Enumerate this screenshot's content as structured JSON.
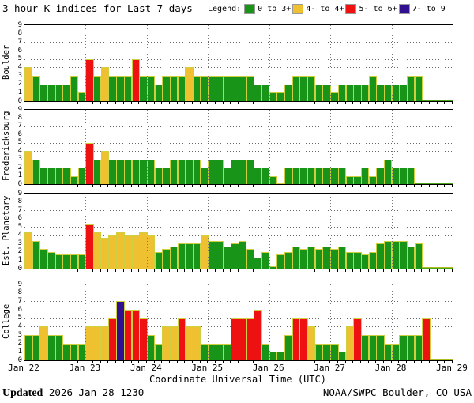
{
  "title": "3-hour K-indices for Last 7 days",
  "legend": {
    "label": "Legend:",
    "items": [
      {
        "label": "0 to 3+",
        "band": "green",
        "color": "#189418"
      },
      {
        "label": "4- to 4+",
        "band": "yellow",
        "color": "#efc02f"
      },
      {
        "label": "5- to 6+",
        "band": "red",
        "color": "#ee1111"
      },
      {
        "label": "7- to 9",
        "band": "purple",
        "color": "#31108f"
      }
    ]
  },
  "xlabel": "Coordinate Universal Time (UTC)",
  "x_axis_days": [
    "Jan 22",
    "Jan 23",
    "Jan 24",
    "Jan 25",
    "Jan 26",
    "Jan 27",
    "Jan 28",
    "Jan 29"
  ],
  "footer": {
    "updated_label": "Updated",
    "updated_value": " 2026 Jan 28 1230",
    "credit": "NOAA/SWPC Boulder, CO USA"
  },
  "colors": {
    "green": "#189418",
    "yellow": "#efc02f",
    "red": "#ee1111",
    "purple": "#31108f",
    "bar_outline": "#cfcf42",
    "grid": "#666666",
    "frame": "#000000",
    "nodata_strip_top": "#e0cc20",
    "nodata_strip_bottom": "#189418"
  },
  "band_thresholds": [
    {
      "min": 6.67,
      "band": "purple"
    },
    {
      "min": 4.67,
      "band": "red"
    },
    {
      "min": 3.67,
      "band": "yellow"
    },
    {
      "min": 0,
      "band": "green"
    }
  ],
  "chart_data": [
    {
      "type": "bar",
      "station": "Boulder",
      "bin_hours": 3,
      "ylim": [
        0,
        9
      ],
      "dotted_gridlines_y": [
        4,
        5,
        7
      ],
      "days": [
        {
          "date": "Jan 22",
          "values": [
            4,
            3,
            2,
            2,
            2,
            2,
            3,
            1
          ]
        },
        {
          "date": "Jan 23",
          "values": [
            5,
            3,
            4,
            3,
            3,
            3,
            5,
            3
          ]
        },
        {
          "date": "Jan 24",
          "values": [
            3,
            2,
            3,
            3,
            3,
            4,
            3,
            3
          ]
        },
        {
          "date": "Jan 25",
          "values": [
            3,
            3,
            3,
            3,
            3,
            3,
            2,
            2
          ]
        },
        {
          "date": "Jan 26",
          "values": [
            1,
            1,
            2,
            3,
            3,
            3,
            2,
            2
          ]
        },
        {
          "date": "Jan 27",
          "values": [
            1,
            2,
            2,
            2,
            2,
            3,
            2,
            2
          ]
        },
        {
          "date": "Jan 28",
          "values": [
            2,
            2,
            3,
            3
          ]
        }
      ]
    },
    {
      "type": "bar",
      "station": "Fredericksburg",
      "bin_hours": 3,
      "ylim": [
        0,
        9
      ],
      "dotted_gridlines_y": [
        4,
        5,
        7
      ],
      "days": [
        {
          "date": "Jan 22",
          "values": [
            4,
            3,
            2,
            2,
            2,
            2,
            1,
            2
          ]
        },
        {
          "date": "Jan 23",
          "values": [
            5,
            3,
            4,
            3,
            3,
            3,
            3,
            3
          ]
        },
        {
          "date": "Jan 24",
          "values": [
            3,
            2,
            2,
            3,
            3,
            3,
            3,
            2
          ]
        },
        {
          "date": "Jan 25",
          "values": [
            3,
            3,
            2,
            3,
            3,
            3,
            2,
            2
          ]
        },
        {
          "date": "Jan 26",
          "values": [
            1,
            0,
            2,
            2,
            2,
            2,
            2,
            2
          ]
        },
        {
          "date": "Jan 27",
          "values": [
            2,
            2,
            1,
            1,
            2,
            1,
            2,
            3
          ]
        },
        {
          "date": "Jan 28",
          "values": [
            2,
            2,
            2
          ]
        }
      ]
    },
    {
      "type": "bar",
      "station": "Est. Planetary",
      "bin_hours": 3,
      "ylim": [
        0,
        9
      ],
      "dotted_gridlines_y": [
        4,
        5,
        7
      ],
      "days": [
        {
          "date": "Jan 22",
          "values": [
            4.33,
            3.33,
            2.33,
            2,
            1.67,
            1.67,
            1.67,
            1.67
          ]
        },
        {
          "date": "Jan 23",
          "values": [
            5.33,
            4.33,
            3.67,
            4,
            4.33,
            4,
            4,
            4.33
          ]
        },
        {
          "date": "Jan 24",
          "values": [
            4,
            2,
            2.33,
            2.67,
            3,
            3,
            3,
            4
          ]
        },
        {
          "date": "Jan 25",
          "values": [
            3.33,
            3.33,
            2.67,
            3,
            3.33,
            2.33,
            1.33,
            2
          ]
        },
        {
          "date": "Jan 26",
          "values": [
            0.33,
            1.67,
            2,
            2.67,
            2.33,
            2.67,
            2.33,
            2.67
          ]
        },
        {
          "date": "Jan 27",
          "values": [
            2.33,
            2.67,
            2,
            2,
            1.67,
            2,
            3,
            3.33
          ]
        },
        {
          "date": "Jan 28",
          "values": [
            3.33,
            3.33,
            2.67,
            3
          ]
        }
      ]
    },
    {
      "type": "bar",
      "station": "College",
      "bin_hours": 3,
      "ylim": [
        0,
        9
      ],
      "dotted_gridlines_y": [
        4,
        5,
        7
      ],
      "days": [
        {
          "date": "Jan 22",
          "values": [
            3,
            3,
            4,
            3,
            3,
            2,
            2,
            2
          ]
        },
        {
          "date": "Jan 23",
          "values": [
            4,
            4,
            4,
            5,
            7,
            6,
            6,
            5
          ]
        },
        {
          "date": "Jan 24",
          "values": [
            3,
            2,
            4,
            4,
            5,
            4,
            4,
            2
          ]
        },
        {
          "date": "Jan 25",
          "values": [
            2,
            2,
            2,
            5,
            5,
            5,
            6,
            2
          ]
        },
        {
          "date": "Jan 26",
          "values": [
            1,
            1,
            3,
            5,
            5,
            4,
            2,
            2
          ]
        },
        {
          "date": "Jan 27",
          "values": [
            2,
            1,
            4,
            5,
            3,
            3,
            3,
            2
          ]
        },
        {
          "date": "Jan 28",
          "values": [
            2,
            3,
            3,
            3,
            5
          ]
        }
      ]
    }
  ]
}
